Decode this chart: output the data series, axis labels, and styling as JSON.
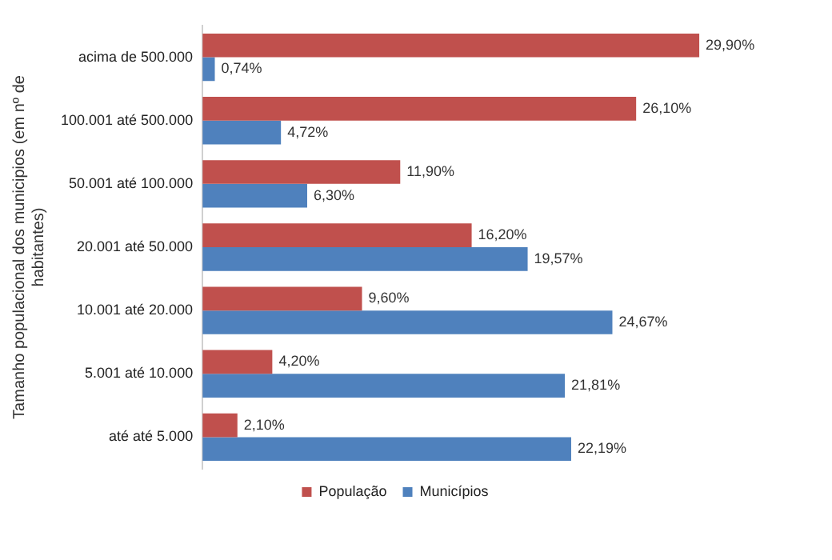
{
  "chart_data": {
    "type": "bar",
    "orientation": "horizontal",
    "ylabel": "Tamanho populacional dos municipios (em nº de habitantes)",
    "categories": [
      "acima de 500.000",
      "100.001 até 500.000",
      "50.001 até 100.000",
      "20.001 até 50.000",
      "10.001 até 20.000",
      "5.001 até 10.000",
      "até até 5.000"
    ],
    "series": [
      {
        "name": "População",
        "color": "#c0504d",
        "values": [
          29.9,
          26.1,
          11.9,
          16.2,
          9.6,
          4.2,
          2.1
        ],
        "value_labels": [
          "29,90%",
          "26,10%",
          "11,90%",
          "16,20%",
          "9,60%",
          "4,20%",
          "2,10%"
        ]
      },
      {
        "name": "Municípios",
        "color": "#4f81bd",
        "values": [
          0.74,
          4.72,
          6.3,
          19.57,
          24.67,
          21.81,
          22.19
        ],
        "value_labels": [
          "0,74%",
          "4,72%",
          "6,30%",
          "19,57%",
          "24,67%",
          "21,81%",
          "22,19%"
        ]
      }
    ],
    "legend": "bottom",
    "tick_labels": "y"
  }
}
